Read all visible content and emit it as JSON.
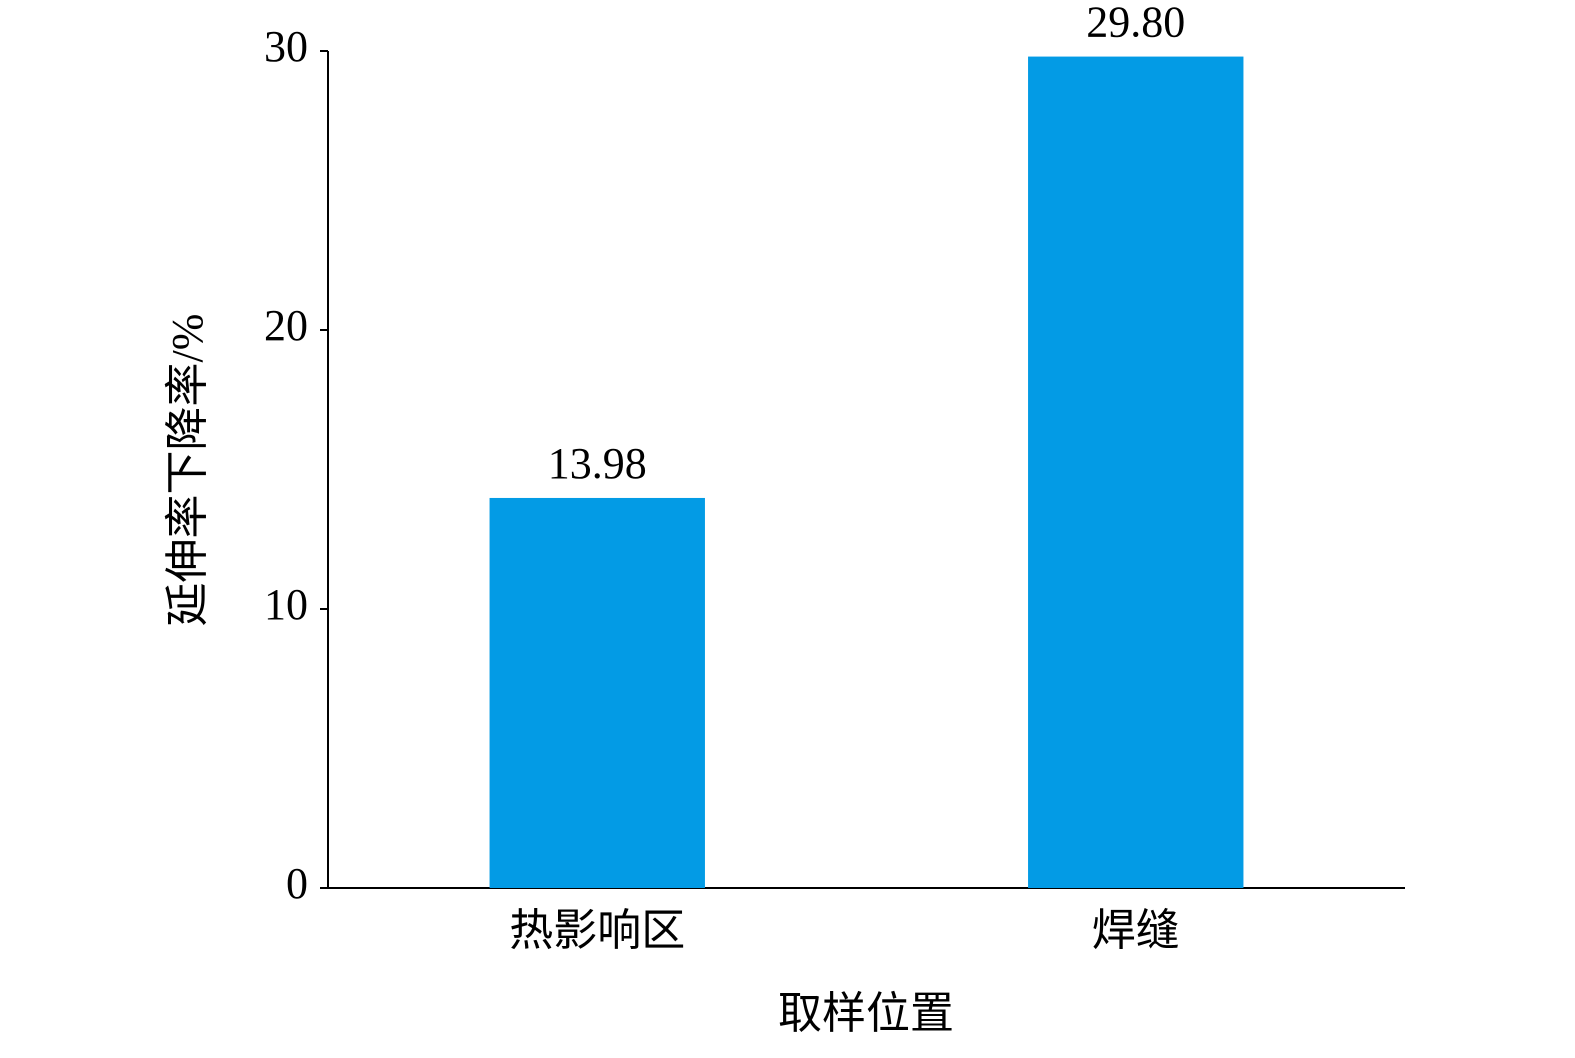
{
  "chart_data": {
    "type": "bar",
    "categories": [
      "热影响区",
      "焊缝"
    ],
    "values": [
      13.98,
      29.8
    ],
    "value_labels": [
      "13.98",
      "29.80"
    ],
    "color": "#039be5",
    "ylim": [
      0,
      30
    ],
    "yticks": [
      0,
      10,
      20,
      30
    ],
    "grid": false,
    "xlabel": "取样位置",
    "ylabel": "延伸率下降率/%"
  }
}
